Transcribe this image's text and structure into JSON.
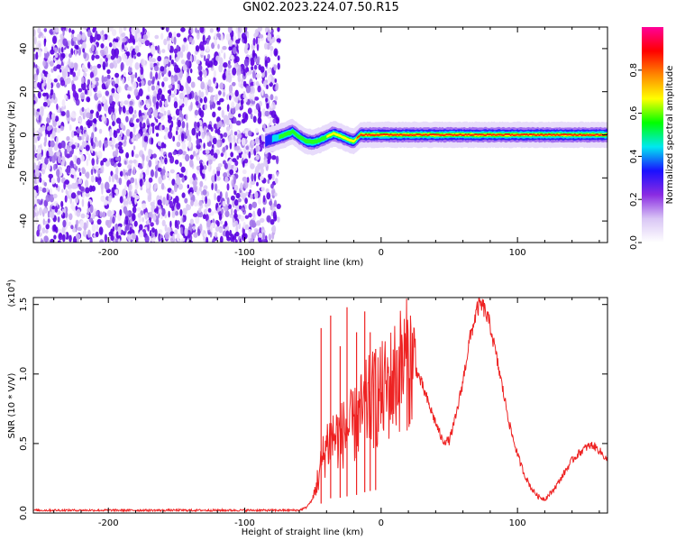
{
  "title": "GN02.2023.224.07.50.R15",
  "chart_data": [
    {
      "type": "heatmap",
      "title": "",
      "xlabel": "Height of straight line (km)",
      "ylabel": "Frequency (Hz)",
      "xlim": [
        -255,
        166
      ],
      "ylim": [
        -50,
        50
      ],
      "xticks": [
        -200,
        -100,
        0,
        100
      ],
      "yticks": [
        -40,
        -20,
        0,
        20,
        40
      ],
      "noise_region_x": [
        -255,
        -75
      ],
      "ridge": {
        "x": [
          -85,
          -80,
          -75,
          -70,
          -65,
          -60,
          -55,
          -50,
          -45,
          -40,
          -35,
          -30,
          -25,
          -20,
          -15,
          0,
          20,
          50,
          80,
          100,
          130,
          166
        ],
        "freq": [
          -3,
          -2,
          -1,
          0,
          1.5,
          -1,
          -3,
          -3.5,
          -2.5,
          -1,
          0.5,
          -0.5,
          -2,
          -3,
          0,
          0,
          0,
          0,
          0,
          0,
          0,
          0
        ]
      },
      "colorbar": {
        "label": "Normalized spectral amplitude",
        "range": [
          0,
          1
        ],
        "ticks": [
          0.0,
          0.2,
          0.4,
          0.6,
          0.8
        ],
        "colors": [
          "#ffffff",
          "#d9c6f5",
          "#8a2be2",
          "#1a10ff",
          "#00e8f0",
          "#00ff00",
          "#ffff00",
          "#ff8800",
          "#ff0000",
          "#ff0099"
        ]
      }
    },
    {
      "type": "line",
      "title": "",
      "xlabel": "Height of straight line (km)",
      "ylabel": "SNR (10 * V/V)",
      "yscale_label": "(x10",
      "yscale_exp": "4",
      "yscale_close": ")",
      "xlim": [
        -255,
        166
      ],
      "ylim": [
        0,
        1.55
      ],
      "xticks": [
        -200,
        -100,
        0,
        100
      ],
      "yticks": [
        0.0,
        0.5,
        1.0,
        1.5
      ],
      "color": "#ee2222",
      "series": [
        {
          "x": [
            -255,
            -200,
            -100,
            -60,
            -55,
            -50,
            -45,
            -40,
            -35,
            -30,
            -25,
            -20,
            -15,
            -10,
            -5,
            0,
            5,
            10,
            15,
            20,
            25,
            30,
            35,
            40,
            45,
            50,
            55,
            60,
            65,
            70,
            72,
            75,
            80,
            85,
            90,
            95,
            100,
            105,
            110,
            115,
            120,
            125,
            130,
            135,
            140,
            145,
            150,
            155,
            160,
            166
          ],
          "values": [
            0.02,
            0.02,
            0.02,
            0.02,
            0.04,
            0.1,
            0.3,
            0.5,
            0.55,
            0.55,
            0.6,
            0.62,
            0.7,
            0.78,
            0.82,
            0.85,
            0.9,
            0.98,
            1.05,
            1.08,
            1.05,
            0.92,
            0.78,
            0.65,
            0.52,
            0.52,
            0.7,
            0.95,
            1.25,
            1.45,
            1.5,
            1.48,
            1.35,
            1.1,
            0.85,
            0.6,
            0.42,
            0.28,
            0.18,
            0.12,
            0.1,
            0.15,
            0.22,
            0.3,
            0.38,
            0.43,
            0.47,
            0.49,
            0.45,
            0.38
          ]
        }
      ],
      "spikes": [
        {
          "x": -44,
          "y": 1.33
        },
        {
          "x": -37,
          "y": 1.42
        },
        {
          "x": -30,
          "y": 1.2
        },
        {
          "x": -25,
          "y": 1.48
        },
        {
          "x": -18,
          "y": 1.3
        },
        {
          "x": -12,
          "y": 1.45
        },
        {
          "x": -8,
          "y": 1.3
        },
        {
          "x": -4,
          "y": 1.18
        }
      ]
    }
  ]
}
